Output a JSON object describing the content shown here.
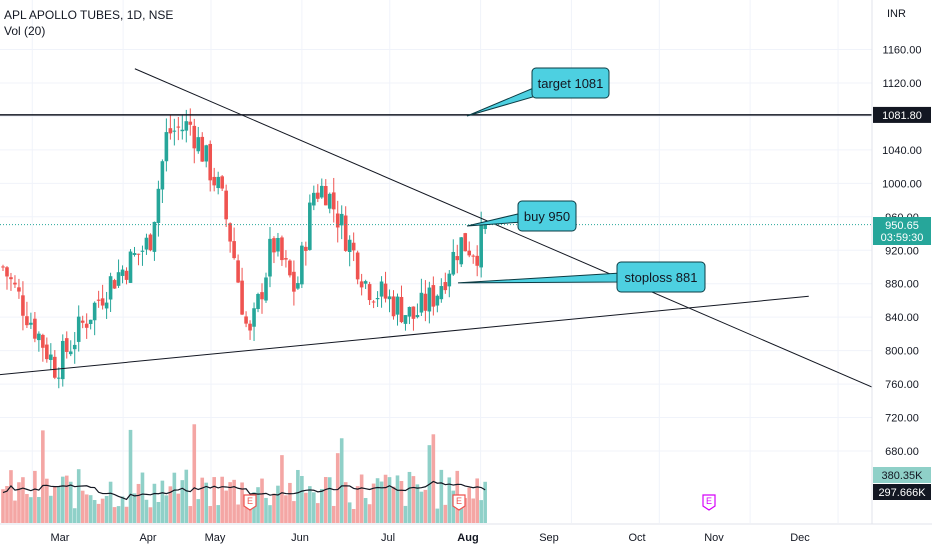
{
  "header": {
    "title": "APL APOLLO TUBES, 1D, NSE",
    "indicator": "Vol (20)",
    "currency": "INR"
  },
  "price_axis": {
    "ticks": [
      "1160.00",
      "1120.00",
      "1081.80",
      "1040.00",
      "1000.00",
      "960.00",
      "950.65",
      "03:59:30",
      "920.00",
      "880.00",
      "840.00",
      "800.00",
      "760.00",
      "720.00",
      "680.00"
    ],
    "last_price": "950.65",
    "countdown": "03:59:30",
    "target_badge": "1081.80",
    "vol_badge": "380.35K",
    "vol_ma_badge": "297.666K"
  },
  "time_axis": {
    "ticks": [
      "Mar",
      "Apr",
      "May",
      "Jun",
      "Jul",
      "Aug",
      "Sep",
      "Oct",
      "Nov",
      "Dec"
    ]
  },
  "annotations": {
    "target": "target 1081",
    "buy": "buy 950",
    "stoploss": "stoploss 881"
  },
  "event_markers": [
    "E",
    "E",
    "E"
  ],
  "colors": {
    "up": "#26a69a",
    "down": "#ef5350",
    "vol_up": "#8fd0c8",
    "vol_down": "#f4a6a4",
    "callout": "#4dd0e1",
    "earnings": "#d500f9",
    "line": "#131722",
    "grid": "#f0f3fa"
  },
  "chart_data": {
    "type": "candlestick",
    "title": "APL APOLLO TUBES, 1D, NSE",
    "x_range": [
      "2022-02-18",
      "2022-12-31"
    ],
    "ylim": [
      650,
      1180
    ],
    "y_ticks": [
      680,
      720,
      760,
      800,
      840,
      880,
      920,
      960,
      1000,
      1040,
      1080,
      1120,
      1160
    ],
    "segments": [
      {
        "days": 0,
        "price": 900
      },
      {
        "days": 12,
        "price": 820
      },
      {
        "days": 18,
        "price": 780
      },
      {
        "days": 36,
        "price": 880
      },
      {
        "days": 50,
        "price": 930
      },
      {
        "days": 56,
        "price": 1060
      },
      {
        "days": 64,
        "price": 1070
      },
      {
        "days": 74,
        "price": 990
      },
      {
        "days": 78,
        "price": 930
      },
      {
        "days": 84,
        "price": 810
      },
      {
        "days": 92,
        "price": 930
      },
      {
        "days": 100,
        "price": 870
      },
      {
        "days": 106,
        "price": 990
      },
      {
        "days": 110,
        "price": 995
      },
      {
        "days": 118,
        "price": 930
      },
      {
        "days": 124,
        "price": 880
      },
      {
        "days": 132,
        "price": 860
      },
      {
        "days": 140,
        "price": 840
      },
      {
        "days": 148,
        "price": 870
      },
      {
        "days": 156,
        "price": 930
      },
      {
        "days": 162,
        "price": 920
      },
      {
        "days": 165,
        "price": 950.65
      }
    ],
    "trendlines": [
      {
        "name": "resistance",
        "from": {
          "days": 45,
          "price": 1137
        },
        "to": {
          "days": 400,
          "price": 600
        }
      },
      {
        "name": "support",
        "from": {
          "days": -5,
          "price": 770
        },
        "to": {
          "days": 275,
          "price": 865
        }
      },
      {
        "name": "target",
        "price": 1081.8
      }
    ],
    "levels": {
      "target": 1081.8,
      "buy": 950.65,
      "stoploss": 881
    },
    "volume_range": [
      0,
      1200000
    ],
    "last_volume": 380350,
    "volume_ma": 297666
  }
}
